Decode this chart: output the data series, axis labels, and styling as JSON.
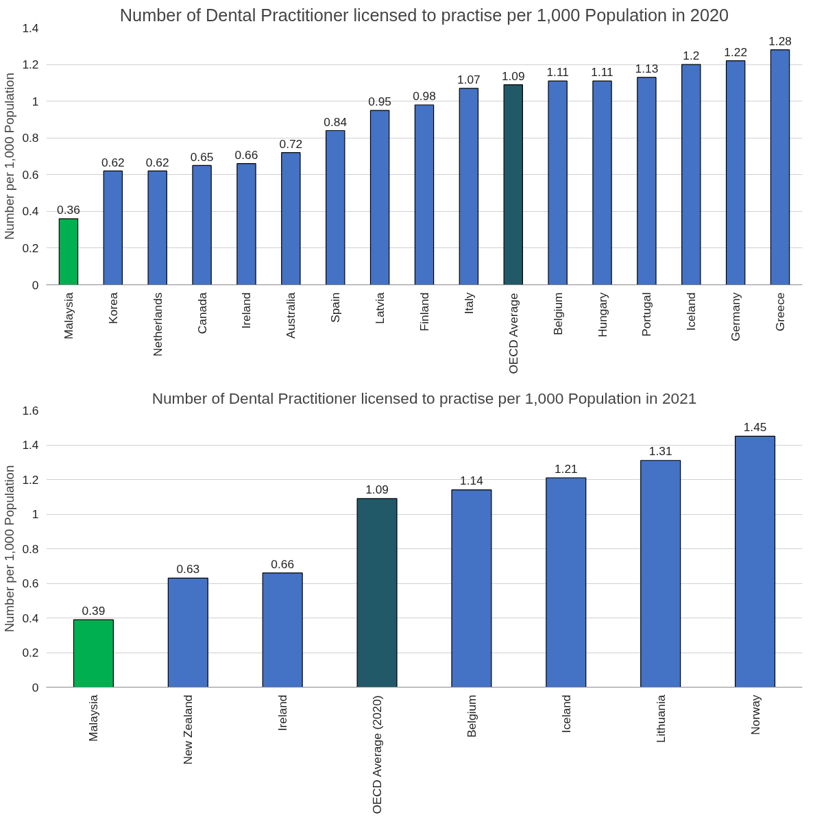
{
  "chart_data": [
    {
      "type": "bar",
      "title": "Number of Dental Practitioner licensed to practise per 1,000 Population in 2020",
      "ylabel": "Number per 1,000 Population",
      "categories": [
        "Malaysia",
        "Korea",
        "Netherlands",
        "Canada",
        "Ireland",
        "Australia",
        "Spain",
        "Latvia",
        "Finland",
        "Italy",
        "OECD Average",
        "Belgium",
        "Hungary",
        "Portugal",
        "Iceland",
        "Germany",
        "Greece"
      ],
      "values": [
        0.36,
        0.62,
        0.62,
        0.65,
        0.66,
        0.72,
        0.84,
        0.95,
        0.98,
        1.07,
        1.09,
        1.11,
        1.11,
        1.13,
        1.2,
        1.22,
        1.28
      ],
      "colors": [
        "#00b050",
        "#4472c4",
        "#4472c4",
        "#4472c4",
        "#4472c4",
        "#4472c4",
        "#4472c4",
        "#4472c4",
        "#4472c4",
        "#4472c4",
        "#215968",
        "#4472c4",
        "#4472c4",
        "#4472c4",
        "#4472c4",
        "#4472c4",
        "#4472c4"
      ],
      "ylim": [
        0,
        1.4
      ],
      "yticks": [
        0,
        0.2,
        0.4,
        0.6,
        0.8,
        1,
        1.2,
        1.4
      ],
      "grid": "y",
      "data_labels": true
    },
    {
      "type": "bar",
      "title": "Number of Dental Practitioner licensed to practise per 1,000 Population in 2021",
      "ylabel": "Number per 1,000 Population",
      "categories": [
        "Malaysia",
        "New Zealand",
        "Ireland",
        "OECD Average (2020)",
        "Belgium",
        "Iceland",
        "Lithuania",
        "Norway"
      ],
      "values": [
        0.39,
        0.63,
        0.66,
        1.09,
        1.14,
        1.21,
        1.31,
        1.45
      ],
      "colors": [
        "#00b050",
        "#4472c4",
        "#4472c4",
        "#215968",
        "#4472c4",
        "#4472c4",
        "#4472c4",
        "#4472c4"
      ],
      "ylim": [
        0,
        1.6
      ],
      "yticks": [
        0,
        0.2,
        0.4,
        0.6,
        0.8,
        1,
        1.2,
        1.4,
        1.6
      ],
      "grid": "y",
      "data_labels": true
    }
  ]
}
